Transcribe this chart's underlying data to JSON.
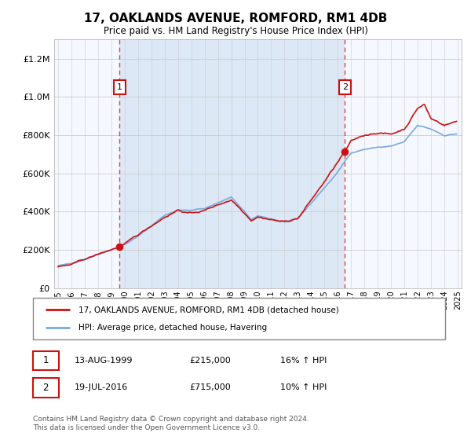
{
  "title": "17, OAKLANDS AVENUE, ROMFORD, RM1 4DB",
  "subtitle": "Price paid vs. HM Land Registry's House Price Index (HPI)",
  "footer": "Contains HM Land Registry data © Crown copyright and database right 2024.\nThis data is licensed under the Open Government Licence v3.0.",
  "legend_line1": "17, OAKLANDS AVENUE, ROMFORD, RM1 4DB (detached house)",
  "legend_line2": "HPI: Average price, detached house, Havering",
  "annotation1_date": "13-AUG-1999",
  "annotation1_price": "£215,000",
  "annotation1_hpi": "16% ↑ HPI",
  "annotation2_date": "19-JUL-2016",
  "annotation2_price": "£715,000",
  "annotation2_hpi": "10% ↑ HPI",
  "sale1_year": 1999.62,
  "sale1_price": 215000,
  "sale2_year": 2016.54,
  "sale2_price": 715000,
  "ylim_max": 1300000,
  "xmin": 1994.7,
  "xmax": 2025.3,
  "bg_color": "#ffffff",
  "plot_bg_color": "#f5f8ff",
  "shade_color": "#dce8f5",
  "red_color": "#cc1111",
  "blue_color": "#7aaadd",
  "grid_color": "#cccccc",
  "dashed_color": "#dd4444"
}
